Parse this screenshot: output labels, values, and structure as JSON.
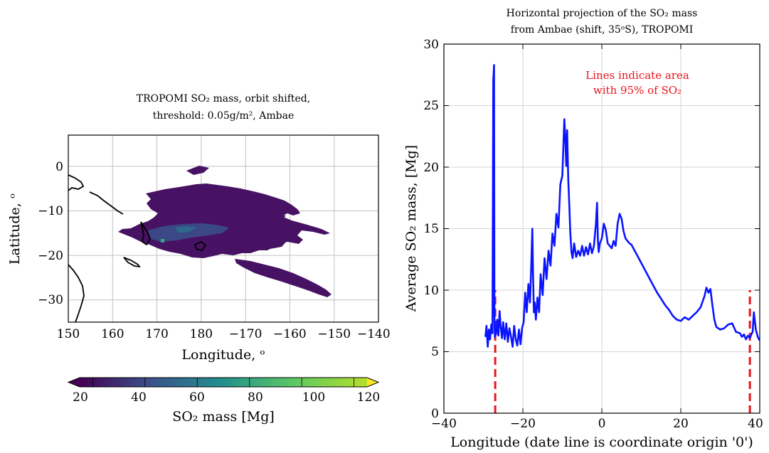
{
  "chart_data": [
    {
      "type": "heatmap",
      "title_line1": "TROPOMI SO₂ mass, orbit shifted,",
      "title_line2": "threshold: 0.05g/m², Ambae",
      "xlabel": "Longitude, ᵒ",
      "ylabel": "Latitude, ᵒ",
      "x_ticks": [
        "150",
        "160",
        "170",
        "180",
        "−170",
        "−160",
        "−150",
        "−140"
      ],
      "y_ticks": [
        "0",
        "−10",
        "−20",
        "−30"
      ],
      "xlim": [
        150,
        220
      ],
      "ylim": [
        -35,
        7
      ],
      "grid": true,
      "colorbar": {
        "label": "SO₂ mass [Mg]",
        "ticks": [
          "20",
          "40",
          "60",
          "80",
          "100",
          "120"
        ],
        "range": [
          15,
          125
        ],
        "extend": "both",
        "colormap": "viridis"
      },
      "plume_regions": [
        {
          "lon": [
            160,
            208
          ],
          "lat": [
            -21,
            -4
          ]
        },
        {
          "lon": [
            192,
            213
          ],
          "lat": [
            -33,
            -23
          ]
        }
      ],
      "peak_region": {
        "lon": [
          168,
          194
        ],
        "lat": [
          -20,
          -15
        ],
        "value_mg": 40
      }
    },
    {
      "type": "line",
      "title_line1": "Horizontal projection of the SO₂ mass",
      "title_line2": "from Ambae (shift, 35ᵒS), TROPOMI",
      "xlabel": "Longitude (date line is coordinate origin '0')",
      "ylabel": "Average SO₂ mass, [Mg]",
      "xlim": [
        -40,
        40
      ],
      "ylim": [
        0,
        30
      ],
      "x_ticks": [
        "−40",
        "−20",
        "0",
        "20",
        "40"
      ],
      "y_ticks": [
        "0",
        "5",
        "10",
        "15",
        "20",
        "25",
        "30"
      ],
      "grid": true,
      "annotation_line1": "Lines indicate area",
      "annotation_line2": "with 95% of SO₂",
      "series": [
        {
          "color": "#0a14ff",
          "x": [
            -29.5,
            -29.2,
            -28.9,
            -28.6,
            -28.3,
            -28.0,
            -27.7,
            -27.5,
            -27.3,
            -27.2,
            -27.1,
            -27.0,
            -26.8,
            -26.5,
            -26.2,
            -25.9,
            -25.6,
            -25.3,
            -25.0,
            -24.6,
            -24.2,
            -23.8,
            -23.4,
            -23.0,
            -22.6,
            -22.2,
            -21.8,
            -21.4,
            -21.0,
            -20.6,
            -20.2,
            -19.8,
            -19.4,
            -19.0,
            -18.6,
            -18.2,
            -17.9,
            -17.6,
            -17.4,
            -17.2,
            -17.0,
            -16.7,
            -16.3,
            -15.9,
            -15.5,
            -15.0,
            -14.5,
            -14.0,
            -13.5,
            -13.0,
            -12.5,
            -12.0,
            -11.5,
            -11.0,
            -10.5,
            -10.0,
            -9.5,
            -9.2,
            -9.0,
            -8.8,
            -8.5,
            -8.2,
            -8.0,
            -7.7,
            -7.4,
            -7.0,
            -6.5,
            -6.0,
            -5.5,
            -5.0,
            -4.5,
            -4.0,
            -3.5,
            -3.0,
            -2.5,
            -2.0,
            -1.5,
            -1.2,
            -1.0,
            -0.8,
            -0.5,
            0.0,
            0.5,
            1.0,
            1.5,
            2.0,
            2.5,
            3.0,
            3.5,
            4.0,
            4.5,
            5.0,
            5.5,
            6.0,
            6.5,
            7.0,
            7.5,
            8.0,
            9.0,
            10.0,
            11.0,
            12.0,
            13.0,
            14.0,
            15.0,
            16.0,
            17.0,
            18.0,
            19.0,
            20.0,
            21.0,
            22.0,
            23.0,
            24.0,
            25.0,
            26.0,
            26.5,
            27.0,
            27.5,
            28.0,
            28.5,
            29.0,
            30.0,
            31.0,
            32.0,
            33.0,
            34.0,
            35.0,
            35.5,
            36.0,
            36.5,
            37.0,
            37.5,
            38.0,
            38.2,
            38.5,
            39.0,
            39.5,
            40.0
          ],
          "y": [
            6.2,
            7.1,
            5.4,
            6.8,
            6.0,
            7.2,
            6.5,
            27.0,
            28.3,
            8.0,
            6.2,
            7.0,
            6.4,
            7.6,
            6.3,
            8.3,
            7.0,
            6.1,
            7.4,
            6.0,
            7.3,
            5.8,
            6.9,
            6.2,
            5.4,
            7.1,
            6.0,
            5.5,
            6.8,
            5.6,
            6.9,
            7.4,
            9.8,
            8.2,
            10.5,
            9.0,
            11.8,
            15.0,
            11.0,
            8.2,
            9.0,
            7.6,
            9.4,
            8.2,
            11.3,
            9.6,
            12.6,
            10.9,
            13.2,
            12.0,
            14.6,
            13.6,
            16.2,
            15.1,
            18.6,
            19.3,
            23.9,
            22.0,
            20.1,
            23.0,
            19.0,
            16.6,
            14.8,
            13.1,
            12.6,
            13.8,
            12.7,
            13.2,
            12.8,
            13.6,
            12.8,
            13.5,
            12.9,
            13.8,
            13.0,
            13.6,
            15.4,
            17.1,
            14.0,
            13.1,
            13.8,
            14.2,
            15.4,
            14.9,
            13.8,
            13.6,
            13.4,
            14.0,
            13.6,
            15.4,
            16.2,
            15.8,
            14.8,
            14.2,
            14.0,
            13.8,
            13.7,
            13.4,
            12.8,
            12.2,
            11.6,
            11.0,
            10.4,
            9.8,
            9.3,
            8.8,
            8.4,
            7.9,
            7.6,
            7.5,
            7.8,
            7.6,
            7.9,
            8.2,
            8.6,
            9.5,
            10.2,
            9.8,
            10.1,
            8.8,
            7.6,
            7.0,
            6.8,
            6.9,
            7.2,
            7.3,
            6.6,
            6.5,
            6.2,
            6.4,
            6.0,
            6.3,
            6.1,
            6.5,
            6.6,
            8.2,
            6.8,
            6.2,
            5.9
          ]
        }
      ],
      "bounds": [
        {
          "x": -27.0,
          "y_top": 10,
          "color": "#e8141b"
        },
        {
          "x": 37.5,
          "y_top": 10,
          "color": "#e8141b"
        }
      ]
    }
  ]
}
